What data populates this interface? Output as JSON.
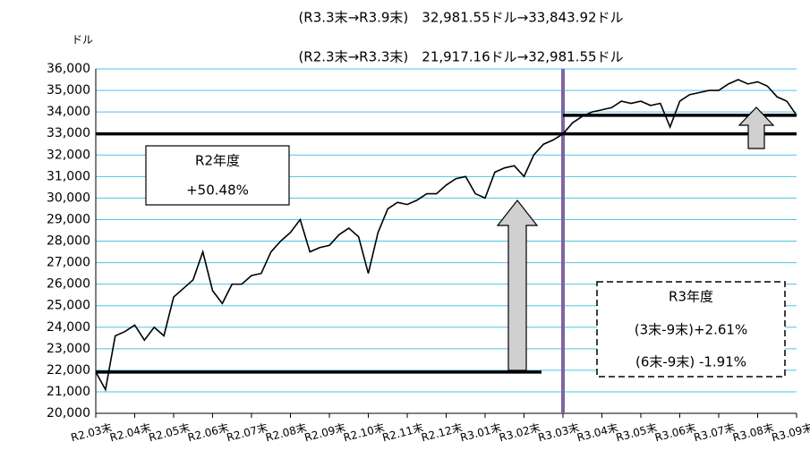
{
  "chart_data": {
    "type": "line",
    "header_lines": [
      "(R3.3末→R3.9末)　32,981.55ドル→33,843.92ドル",
      "(R2.3末→R3.3末)　21,917.16ドル→32,981.55ドル"
    ],
    "y_unit": "ドル",
    "box_r2": [
      "R2年度",
      "+50.48%"
    ],
    "box_r3": [
      "R3年度",
      "(3末-9末)+2.61%",
      "(6末-9末) -1.91%"
    ],
    "categories": [
      "R2.03末",
      null,
      null,
      null,
      "R2.04末",
      null,
      null,
      null,
      "R2.05末",
      null,
      null,
      null,
      "R2.06末",
      null,
      null,
      null,
      "R2.07末",
      null,
      null,
      null,
      "R2.08末",
      null,
      null,
      null,
      "R2.09末",
      null,
      null,
      null,
      "R2.10末",
      null,
      null,
      null,
      "R2.11末",
      null,
      null,
      null,
      "R2.12末",
      null,
      null,
      null,
      "R3.01末",
      null,
      null,
      null,
      "R3.02末",
      null,
      null,
      null,
      "R3.03末",
      null,
      null,
      null,
      "R3.04末",
      null,
      null,
      null,
      "R3.05末",
      null,
      null,
      null,
      "R3.06末",
      null,
      null,
      null,
      "R3.07末",
      null,
      null,
      null,
      "R3.08末",
      null,
      null,
      null,
      "R3.09末"
    ],
    "series": [
      {
        "name": "ドル",
        "color": "#000000",
        "values": [
          21917.16,
          21100,
          23600,
          23800,
          24100,
          23400,
          24000,
          23600,
          25400,
          25800,
          26200,
          27500,
          25700,
          25100,
          26000,
          26000,
          26400,
          26500,
          27500,
          28000,
          28400,
          29000,
          27500,
          27700,
          27800,
          28300,
          28600,
          28200,
          26500,
          28400,
          29500,
          29800,
          29700,
          29900,
          30200,
          30200,
          30600,
          30900,
          31000,
          30200,
          30000,
          31200,
          31400,
          31500,
          31000,
          32000,
          32500,
          32700,
          32981.55,
          33500,
          33800,
          34000,
          34100,
          34200,
          34500,
          34400,
          34500,
          34300,
          34400,
          33300,
          34500,
          34800,
          34900,
          35000,
          35000,
          35300,
          35500,
          35300,
          35400,
          35200,
          34700,
          34500,
          33843.92
        ]
      }
    ],
    "reference_lines": [
      21917.16,
      32981.55,
      33843.92
    ],
    "ylim": [
      20000,
      36000
    ],
    "yticks": [
      {
        "value": 20000,
        "label": "20,000"
      },
      {
        "value": 21000,
        "label": "21,000"
      },
      {
        "value": 22000,
        "label": "22,000"
      },
      {
        "value": 23000,
        "label": "23,000"
      },
      {
        "value": 24000,
        "label": "24,000"
      },
      {
        "value": 25000,
        "label": "25,000"
      },
      {
        "value": 26000,
        "label": "26,000"
      },
      {
        "value": 27000,
        "label": "27,000"
      },
      {
        "value": 28000,
        "label": "28,000"
      },
      {
        "value": 29000,
        "label": "29,000"
      },
      {
        "value": 30000,
        "label": "30,000"
      },
      {
        "value": 31000,
        "label": "31,000"
      },
      {
        "value": 32000,
        "label": "32,000"
      },
      {
        "value": 33000,
        "label": "33,000"
      },
      {
        "value": 34000,
        "label": "34,000"
      },
      {
        "value": 35000,
        "label": "35,000"
      },
      {
        "value": 36000,
        "label": "36,000"
      }
    ],
    "grid": true,
    "grid_color": "#4fc3e8",
    "divider_color": "#8064a2"
  }
}
